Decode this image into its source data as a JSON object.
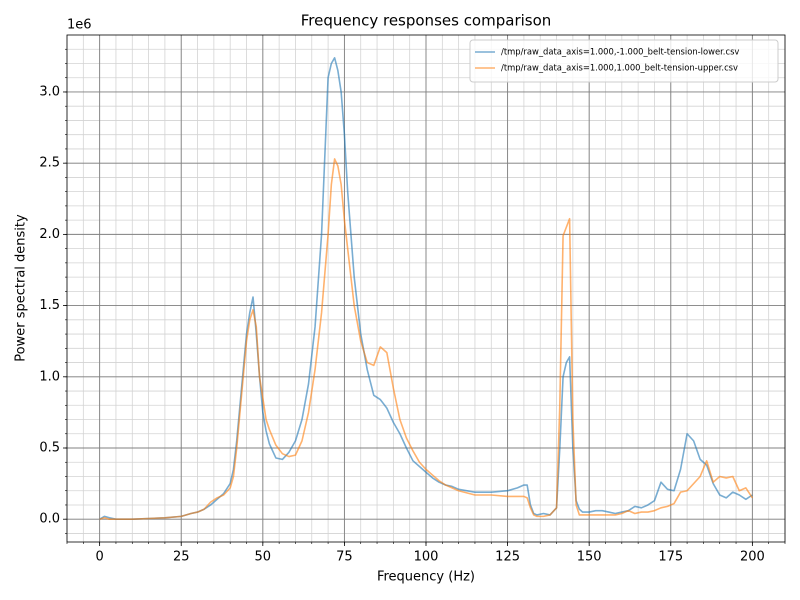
{
  "chart_data": {
    "type": "line",
    "title": "Frequency responses comparison",
    "xlabel": "Frequency (Hz)",
    "ylabel": "Power spectral density",
    "y_offset_label": "1e6",
    "x": [
      0,
      1.5,
      3,
      5,
      8,
      10,
      15,
      20,
      25,
      28,
      30,
      32,
      34,
      36,
      38,
      40,
      41,
      42,
      43,
      44,
      45,
      46,
      47,
      48,
      49,
      50,
      51,
      52,
      54,
      56,
      58,
      60,
      62,
      64,
      66,
      68,
      70,
      71,
      72,
      73,
      74,
      75,
      76,
      78,
      80,
      82,
      84,
      86,
      88,
      90,
      92,
      94,
      96,
      98,
      100,
      102,
      104,
      106,
      108,
      110,
      115,
      120,
      125,
      128,
      130,
      131,
      132,
      133,
      134,
      136,
      138,
      140,
      141,
      142,
      143,
      144,
      145,
      146,
      147,
      148,
      150,
      152,
      154,
      156,
      158,
      160,
      162,
      164,
      166,
      168,
      170,
      172,
      174,
      176,
      178,
      180,
      182,
      184,
      186,
      188,
      190,
      192,
      194,
      196,
      198,
      200
    ],
    "series": [
      {
        "name": "/tmp/raw_data_axis=1.000,-1.000_belt-tension-lower.csv",
        "color": "#1f77b4",
        "opacity": 0.6,
        "values": [
          0.0,
          0.02,
          0.01,
          0.0,
          0.0,
          0.0,
          0.005,
          0.01,
          0.02,
          0.04,
          0.05,
          0.07,
          0.1,
          0.14,
          0.18,
          0.25,
          0.35,
          0.55,
          0.8,
          1.05,
          1.3,
          1.45,
          1.56,
          1.3,
          1.0,
          0.75,
          0.62,
          0.53,
          0.43,
          0.42,
          0.47,
          0.55,
          0.7,
          0.95,
          1.35,
          2.0,
          3.1,
          3.2,
          3.24,
          3.15,
          3.0,
          2.7,
          2.3,
          1.7,
          1.3,
          1.05,
          0.87,
          0.84,
          0.78,
          0.68,
          0.6,
          0.5,
          0.41,
          0.37,
          0.33,
          0.29,
          0.26,
          0.24,
          0.23,
          0.21,
          0.19,
          0.19,
          0.2,
          0.22,
          0.24,
          0.24,
          0.1,
          0.04,
          0.03,
          0.04,
          0.03,
          0.08,
          0.5,
          1.0,
          1.1,
          1.14,
          0.5,
          0.13,
          0.07,
          0.05,
          0.05,
          0.06,
          0.06,
          0.05,
          0.04,
          0.05,
          0.06,
          0.09,
          0.08,
          0.1,
          0.13,
          0.26,
          0.21,
          0.2,
          0.35,
          0.6,
          0.55,
          0.42,
          0.38,
          0.25,
          0.17,
          0.15,
          0.19,
          0.17,
          0.14,
          0.17
        ]
      },
      {
        "name": "/tmp/raw_data_axis=1.000,1.000_belt-tension-upper.csv",
        "color": "#ff7f0e",
        "opacity": 0.6,
        "values": [
          0.0,
          0.01,
          0.0,
          0.0,
          0.0,
          0.0,
          0.005,
          0.01,
          0.02,
          0.04,
          0.05,
          0.07,
          0.12,
          0.15,
          0.17,
          0.22,
          0.3,
          0.5,
          0.75,
          1.0,
          1.25,
          1.4,
          1.47,
          1.35,
          1.0,
          0.85,
          0.7,
          0.63,
          0.52,
          0.46,
          0.44,
          0.45,
          0.55,
          0.75,
          1.05,
          1.45,
          2.0,
          2.35,
          2.53,
          2.48,
          2.35,
          2.1,
          1.9,
          1.5,
          1.25,
          1.1,
          1.08,
          1.21,
          1.17,
          0.92,
          0.7,
          0.57,
          0.48,
          0.4,
          0.35,
          0.31,
          0.27,
          0.24,
          0.22,
          0.2,
          0.17,
          0.17,
          0.16,
          0.16,
          0.16,
          0.15,
          0.08,
          0.03,
          0.02,
          0.02,
          0.03,
          0.08,
          0.8,
          1.99,
          2.05,
          2.11,
          0.7,
          0.1,
          0.03,
          0.03,
          0.03,
          0.03,
          0.03,
          0.03,
          0.03,
          0.04,
          0.06,
          0.04,
          0.05,
          0.05,
          0.06,
          0.08,
          0.09,
          0.11,
          0.19,
          0.2,
          0.25,
          0.3,
          0.41,
          0.26,
          0.3,
          0.29,
          0.3,
          0.2,
          0.22,
          0.15
        ]
      }
    ],
    "xlim": [
      -10,
      210
    ],
    "ylim": [
      -0.16,
      3.4
    ],
    "xticks": [
      0,
      25,
      50,
      75,
      100,
      125,
      150,
      175,
      200
    ],
    "yticks": [
      {
        "value": 0,
        "label": "0.0"
      },
      0.5,
      {
        "value": 1,
        "label": "1.0"
      },
      1.5,
      {
        "value": 2,
        "label": "2.0"
      },
      2.5,
      {
        "value": 3,
        "label": "3.0"
      }
    ],
    "xminorticks": [
      -10,
      -5,
      0,
      5,
      10,
      15,
      20,
      25,
      30,
      35,
      40,
      45,
      50,
      55,
      60,
      65,
      70,
      75,
      80,
      85,
      90,
      95,
      100,
      105,
      110,
      115,
      120,
      125,
      130,
      135,
      140,
      145,
      150,
      155,
      160,
      165,
      170,
      175,
      180,
      185,
      190,
      195,
      200,
      205,
      210
    ],
    "yminorticks": [
      -0.1,
      0,
      0.1,
      0.2,
      0.3,
      0.4,
      0.5,
      0.6,
      0.7,
      0.8,
      0.9,
      1,
      1.1,
      1.2,
      1.3,
      1.4,
      1.5,
      1.6,
      1.7,
      1.8,
      1.9,
      2,
      2.1,
      2.2,
      2.3,
      2.4,
      2.5,
      2.6,
      2.7,
      2.8,
      2.9,
      3,
      3.1,
      3.2,
      3.3
    ],
    "grid": true,
    "minor_grid": true,
    "legend": "upper right"
  }
}
